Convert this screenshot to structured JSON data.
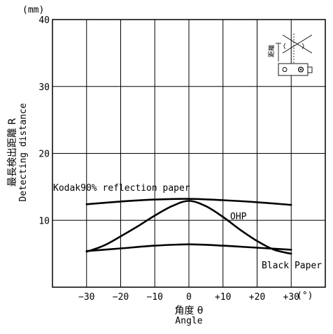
{
  "chart_data": {
    "type": "line",
    "title": "",
    "y_unit": "(mm)",
    "x_unit": "(°)",
    "ylabel_jp": "最長検出距離 R",
    "ylabel_en": "Detecting distance",
    "xlabel_jp": "角度 θ",
    "xlabel_en": "Angle",
    "xlim": [
      -40,
      40
    ],
    "ylim": [
      0,
      40
    ],
    "x_ticks": [
      -30,
      -20,
      -10,
      0,
      10,
      20,
      30
    ],
    "x_tick_labels": [
      "−30",
      "−20",
      "−10",
      "0",
      "+10",
      "+20",
      "+30"
    ],
    "y_ticks": [
      10,
      20,
      30,
      40
    ],
    "y_tick_labels": [
      "10",
      "20",
      "30",
      "40"
    ],
    "grid": true,
    "series": [
      {
        "name": "Kodak90% reflection paper",
        "x": [
          -30,
          -20,
          -10,
          0,
          10,
          20,
          30
        ],
        "y": [
          12.4,
          12.8,
          13.1,
          13.2,
          13.0,
          12.7,
          12.3
        ]
      },
      {
        "name": "OHP",
        "x": [
          -30,
          -25,
          -20,
          -15,
          -10,
          -5,
          0,
          5,
          10,
          15,
          20,
          25,
          30
        ],
        "y": [
          5.3,
          6.2,
          7.6,
          9.1,
          10.7,
          12.1,
          12.9,
          12.1,
          10.5,
          8.6,
          6.9,
          5.6,
          5.0
        ]
      },
      {
        "name": "Black Paper",
        "x": [
          -30,
          -20,
          -10,
          0,
          10,
          20,
          30
        ],
        "y": [
          5.4,
          5.8,
          6.2,
          6.4,
          6.2,
          5.9,
          5.6
        ]
      }
    ],
    "annotations": {
      "inset_label": "距離"
    }
  }
}
